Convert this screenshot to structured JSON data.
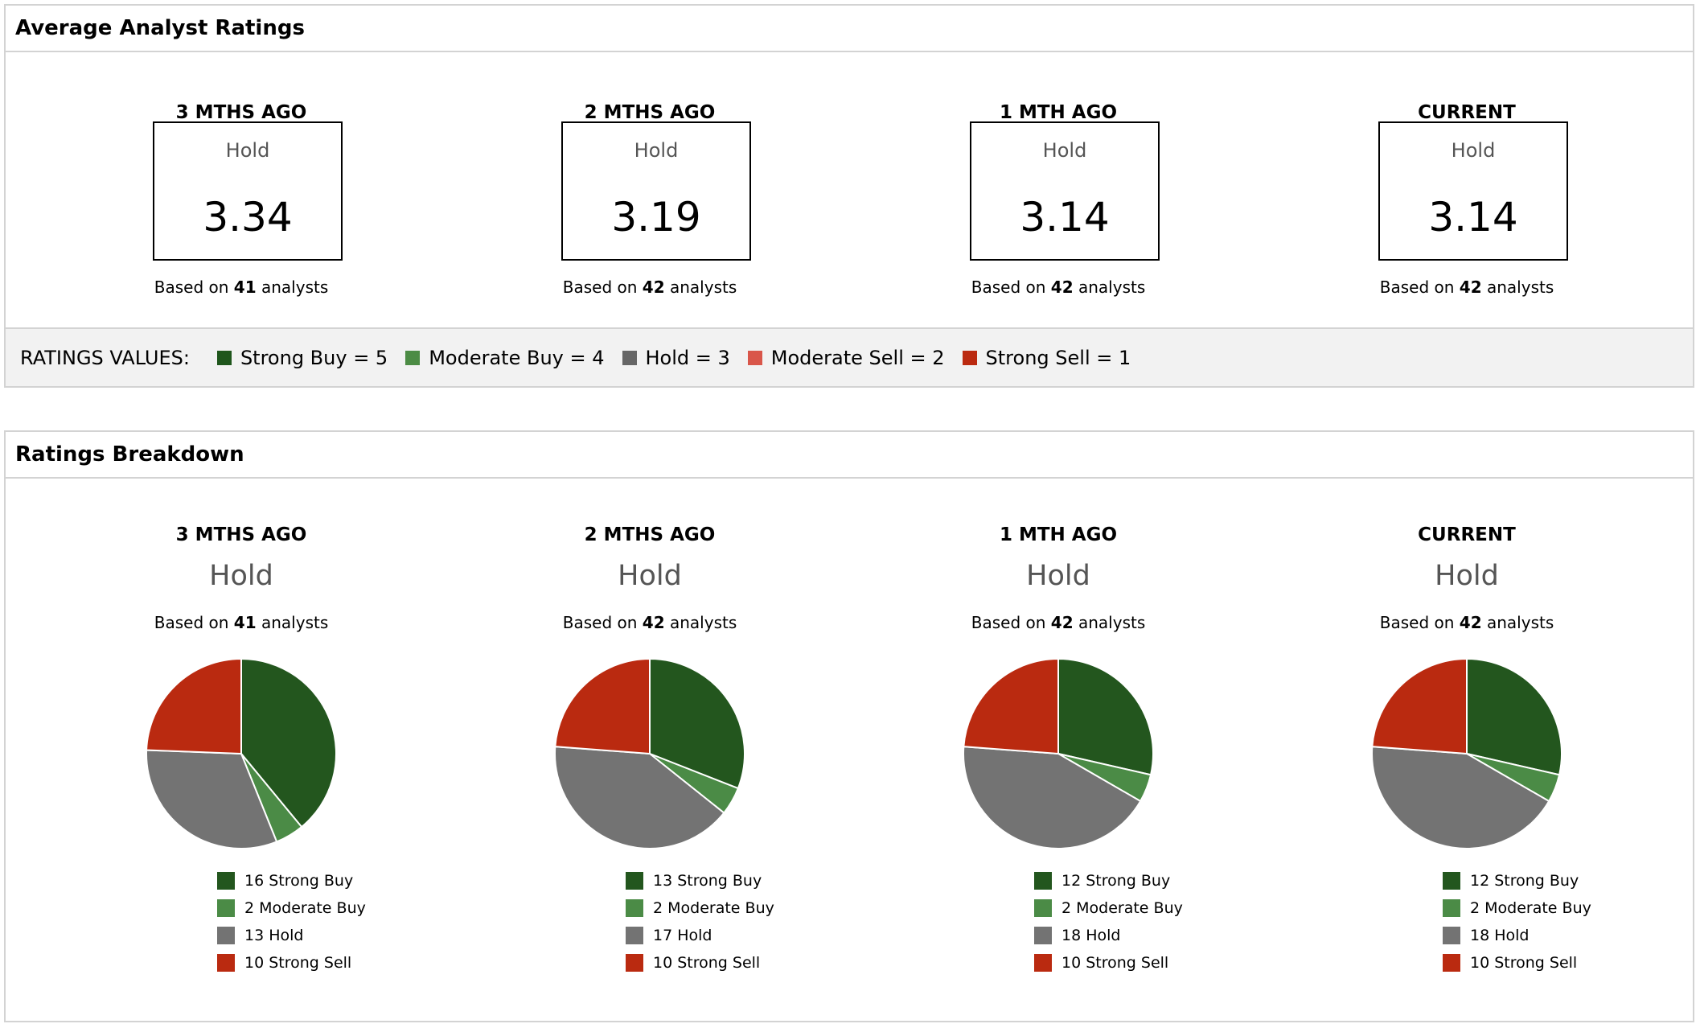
{
  "average": {
    "title": "Average Analyst Ratings",
    "periods": [
      {
        "period": "3 MTHS AGO",
        "rating": "Hold",
        "score": "3.34",
        "based_prefix": "Based on",
        "count": "41",
        "based_suffix": "analysts"
      },
      {
        "period": "2 MTHS AGO",
        "rating": "Hold",
        "score": "3.19",
        "based_prefix": "Based on",
        "count": "42",
        "based_suffix": "analysts"
      },
      {
        "period": "1 MTH AGO",
        "rating": "Hold",
        "score": "3.14",
        "based_prefix": "Based on",
        "count": "42",
        "based_suffix": "analysts"
      },
      {
        "period": "CURRENT",
        "rating": "Hold",
        "score": "3.14",
        "based_prefix": "Based on",
        "count": "42",
        "based_suffix": "analysts"
      }
    ],
    "legend": {
      "title": "RATINGS VALUES:",
      "items": [
        {
          "label": "Strong Buy = 5",
          "color": "#1f561c"
        },
        {
          "label": "Moderate Buy = 4",
          "color": "#4c8c45"
        },
        {
          "label": "Hold = 3",
          "color": "#666666"
        },
        {
          "label": "Moderate Sell = 2",
          "color": "#d9564a"
        },
        {
          "label": "Strong Sell = 1",
          "color": "#bb2a10"
        }
      ]
    }
  },
  "breakdown": {
    "title": "Ratings Breakdown",
    "colors": {
      "strong_buy": "#23561e",
      "moderate_buy": "#4b8b46",
      "hold": "#737373",
      "strong_sell": "#ba2a10"
    }
  },
  "chart_data": [
    {
      "type": "pie",
      "title": "3 MTHS AGO",
      "subtitle": "Hold",
      "based_prefix": "Based on",
      "count": "41",
      "based_suffix": "analysts",
      "categories": [
        "Strong Buy",
        "Moderate Buy",
        "Hold",
        "Strong Sell"
      ],
      "values": [
        16,
        2,
        13,
        10
      ],
      "labels": [
        "16 Strong Buy",
        "2 Moderate Buy",
        "13 Hold",
        "10 Strong Sell"
      ]
    },
    {
      "type": "pie",
      "title": "2 MTHS AGO",
      "subtitle": "Hold",
      "based_prefix": "Based on",
      "count": "42",
      "based_suffix": "analysts",
      "categories": [
        "Strong Buy",
        "Moderate Buy",
        "Hold",
        "Strong Sell"
      ],
      "values": [
        13,
        2,
        17,
        10
      ],
      "labels": [
        "13 Strong Buy",
        "2 Moderate Buy",
        "17 Hold",
        "10 Strong Sell"
      ]
    },
    {
      "type": "pie",
      "title": "1 MTH AGO",
      "subtitle": "Hold",
      "based_prefix": "Based on",
      "count": "42",
      "based_suffix": "analysts",
      "categories": [
        "Strong Buy",
        "Moderate Buy",
        "Hold",
        "Strong Sell"
      ],
      "values": [
        12,
        2,
        18,
        10
      ],
      "labels": [
        "12 Strong Buy",
        "2 Moderate Buy",
        "18 Hold",
        "10 Strong Sell"
      ]
    },
    {
      "type": "pie",
      "title": "CURRENT",
      "subtitle": "Hold",
      "based_prefix": "Based on",
      "count": "42",
      "based_suffix": "analysts",
      "categories": [
        "Strong Buy",
        "Moderate Buy",
        "Hold",
        "Strong Sell"
      ],
      "values": [
        12,
        2,
        18,
        10
      ],
      "labels": [
        "12 Strong Buy",
        "2 Moderate Buy",
        "18 Hold",
        "10 Strong Sell"
      ]
    }
  ]
}
